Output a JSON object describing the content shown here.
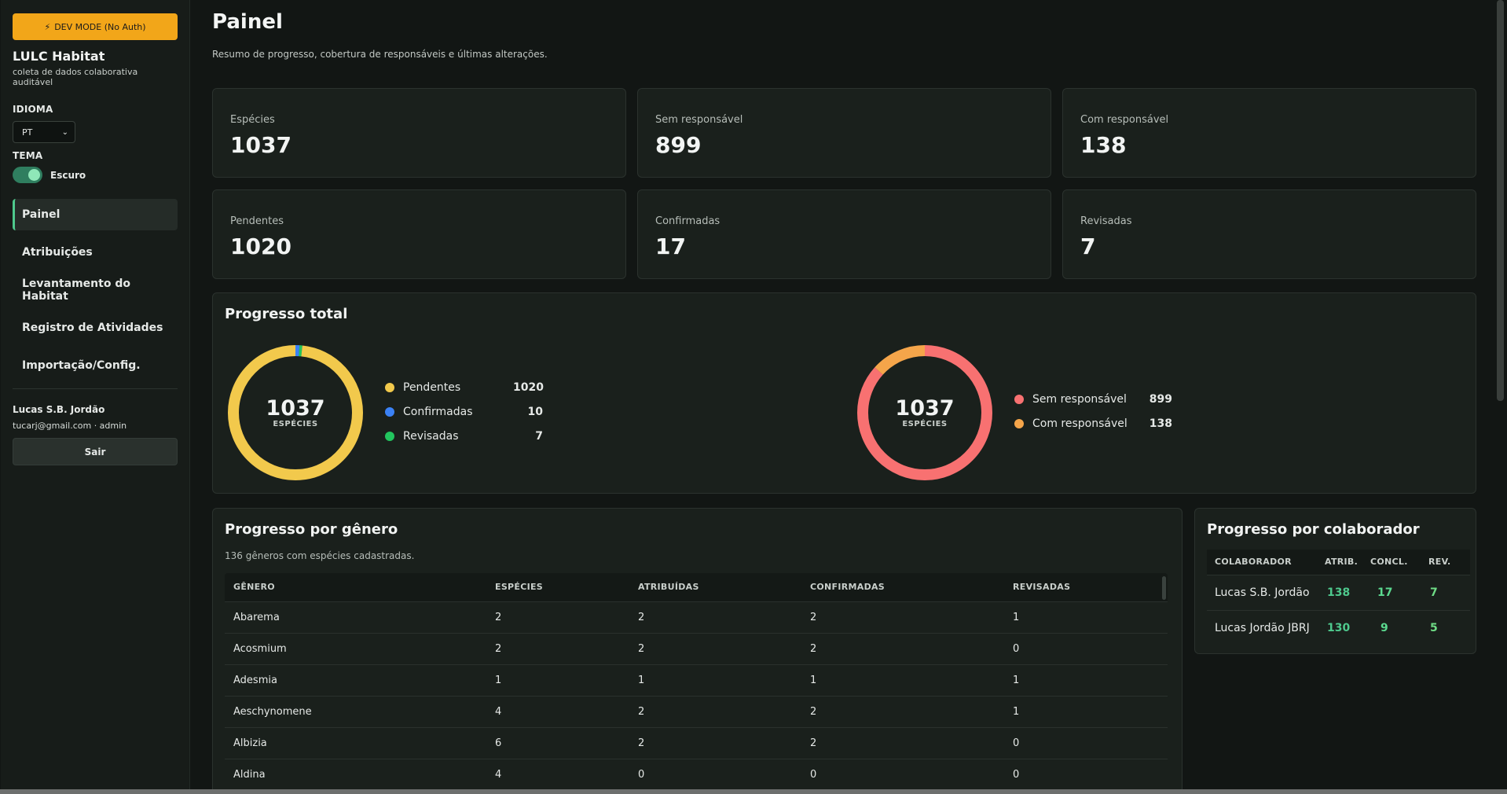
{
  "dev_banner": "DEV MODE (No Auth)",
  "app": {
    "title": "LULC Habitat",
    "subtitle": "coleta de dados colaborativa auditável"
  },
  "language": {
    "label": "IDIOMA",
    "value": "PT"
  },
  "theme": {
    "label": "TEMA",
    "value": "Escuro"
  },
  "nav": [
    "Painel",
    "Atribuições",
    "Levantamento do Habitat",
    "Registro de Atividades",
    "Importação/Config."
  ],
  "user": {
    "name": "Lucas S.B. Jordão",
    "meta": "tucarj@gmail.com · admin",
    "logout": "Sair"
  },
  "page": {
    "title": "Painel",
    "subtitle": "Resumo de progresso, cobertura de responsáveis e últimas alterações."
  },
  "stats": [
    {
      "label": "Espécies",
      "value": "1037"
    },
    {
      "label": "Sem responsável",
      "value": "899"
    },
    {
      "label": "Com responsável",
      "value": "138"
    },
    {
      "label": "Pendentes",
      "value": "1020"
    },
    {
      "label": "Confirmadas",
      "value": "17"
    },
    {
      "label": "Revisadas",
      "value": "7"
    }
  ],
  "progress": {
    "title": "Progresso total",
    "donut1": {
      "total": "1037",
      "unit": "ESPÉCIES"
    },
    "donut2": {
      "total": "1037",
      "unit": "ESPÉCIES"
    },
    "legend1": [
      {
        "name": "Pendentes",
        "value": "1020",
        "color": "#f2c94c"
      },
      {
        "name": "Confirmadas",
        "value": "10",
        "color": "#3b82f6"
      },
      {
        "name": "Revisadas",
        "value": "7",
        "color": "#22c55e"
      }
    ],
    "legend2": [
      {
        "name": "Sem responsável",
        "value": "899",
        "color": "#f87171"
      },
      {
        "name": "Com responsável",
        "value": "138",
        "color": "#f5a54a"
      }
    ]
  },
  "genus": {
    "title": "Progresso por gênero",
    "subtitle": "136 gêneros com espécies cadastradas.",
    "columns": [
      "GÊNERO",
      "ESPÉCIES",
      "ATRIBUÍDAS",
      "CONFIRMADAS",
      "REVISADAS"
    ],
    "rows": [
      [
        "Abarema",
        "2",
        "2",
        "2",
        "1"
      ],
      [
        "Acosmium",
        "2",
        "2",
        "2",
        "0"
      ],
      [
        "Adesmia",
        "1",
        "1",
        "1",
        "1"
      ],
      [
        "Aeschynomene",
        "4",
        "2",
        "2",
        "1"
      ],
      [
        "Albizia",
        "6",
        "2",
        "2",
        "0"
      ],
      [
        "Aldina",
        "4",
        "0",
        "0",
        "0"
      ]
    ]
  },
  "collab": {
    "title": "Progresso por colaborador",
    "columns": [
      "COLABORADOR",
      "ATRIB.",
      "CONCL.",
      "REV."
    ],
    "rows": [
      [
        "Lucas S.B. Jordão",
        "138",
        "17",
        "7"
      ],
      [
        "Lucas Jordão JBRJ",
        "130",
        "9",
        "5"
      ]
    ]
  }
}
